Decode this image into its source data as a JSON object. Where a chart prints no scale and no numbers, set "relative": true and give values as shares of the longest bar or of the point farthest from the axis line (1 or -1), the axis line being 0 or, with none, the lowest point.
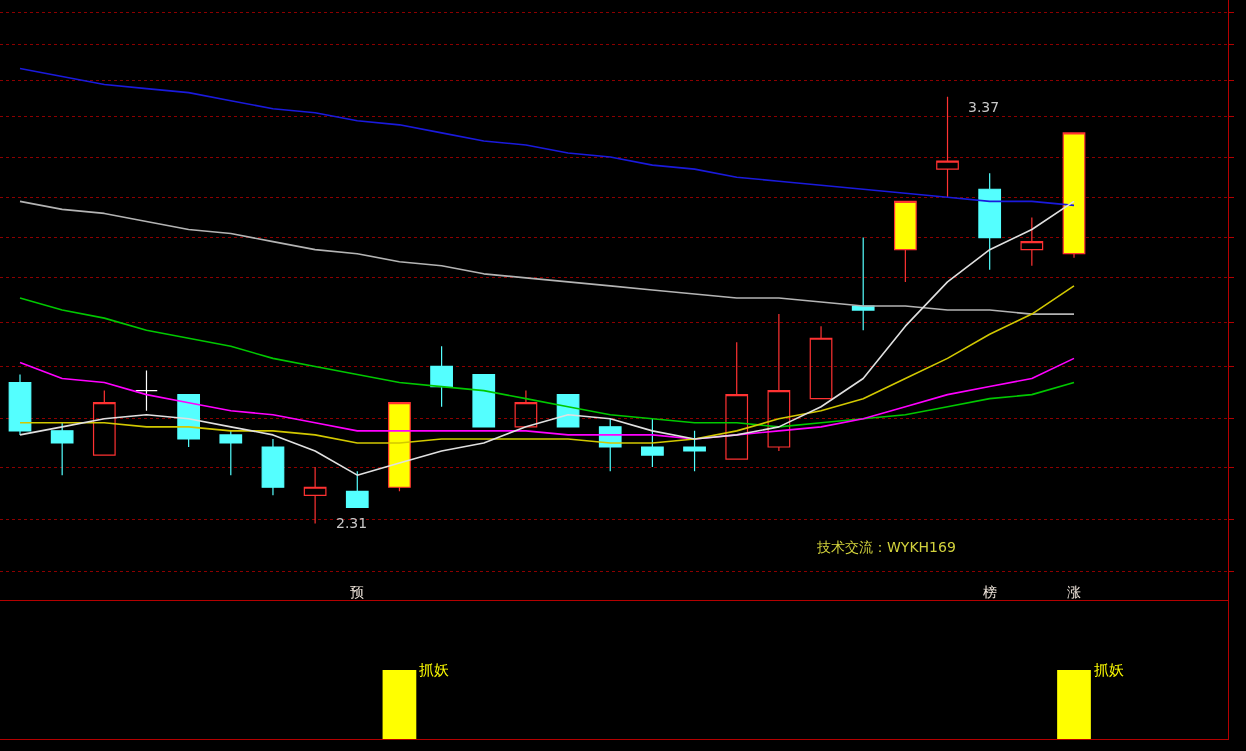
{
  "chart_data": [
    {
      "type": "candlestick",
      "categories": [
        null,
        null,
        null,
        null,
        null,
        null,
        null,
        null,
        "预",
        null,
        null,
        null,
        null,
        null,
        null,
        null,
        null,
        null,
        null,
        null,
        null,
        null,
        null,
        "榜",
        null,
        "涨"
      ],
      "ohlc": [
        [
          2.66,
          2.68,
          2.53,
          2.54
        ],
        [
          2.54,
          2.56,
          2.43,
          2.51
        ],
        [
          2.48,
          2.64,
          2.48,
          2.61
        ],
        [
          2.64,
          2.69,
          2.59,
          2.64
        ],
        [
          2.63,
          2.63,
          2.5,
          2.52
        ],
        [
          2.53,
          2.54,
          2.43,
          2.51
        ],
        [
          2.5,
          2.52,
          2.38,
          2.4
        ],
        [
          2.38,
          2.45,
          2.31,
          2.4
        ],
        [
          2.39,
          2.44,
          2.35,
          2.35
        ],
        [
          2.4,
          2.61,
          2.39,
          2.61
        ],
        [
          2.7,
          2.75,
          2.6,
          2.65
        ],
        [
          2.68,
          2.68,
          2.55,
          2.55
        ],
        [
          2.55,
          2.64,
          2.55,
          2.61
        ],
        [
          2.63,
          2.63,
          2.55,
          2.55
        ],
        [
          2.55,
          2.57,
          2.44,
          2.5
        ],
        [
          2.5,
          2.57,
          2.45,
          2.48
        ],
        [
          2.5,
          2.54,
          2.44,
          2.49
        ],
        [
          2.47,
          2.76,
          2.47,
          2.63
        ],
        [
          2.5,
          2.83,
          2.49,
          2.64
        ],
        [
          2.62,
          2.8,
          2.62,
          2.77
        ],
        [
          2.85,
          3.02,
          2.79,
          2.84
        ],
        [
          2.99,
          3.11,
          2.91,
          3.11
        ],
        [
          3.19,
          3.37,
          3.12,
          3.21
        ],
        [
          3.14,
          3.18,
          2.94,
          3.02
        ],
        [
          2.99,
          3.07,
          2.95,
          3.01
        ],
        [
          2.98,
          3.28,
          2.97,
          3.28
        ]
      ],
      "color": "#ff3232",
      "colors": [
        "#54ffff",
        "#54ffff",
        null,
        "#ffffff",
        "#54ffff",
        "#54ffff",
        "#54ffff",
        null,
        "#54ffff",
        "#ffff00",
        "#54ffff",
        "#54ffff",
        null,
        "#54ffff",
        "#54ffff",
        "#54ffff",
        "#54ffff",
        null,
        null,
        null,
        "#54ffff",
        "#ffff00",
        null,
        "#54ffff",
        null,
        "#ffff00"
      ],
      "series": [
        {
          "type": "line",
          "color": "#1a1adc",
          "values": [
            3.44,
            3.42,
            3.4,
            3.39,
            3.38,
            3.36,
            3.34,
            3.33,
            3.31,
            3.3,
            3.28,
            3.26,
            3.25,
            3.23,
            3.22,
            3.2,
            3.19,
            3.17,
            3.16,
            3.15,
            3.14,
            3.13,
            3.12,
            3.11,
            3.11,
            3.1
          ]
        },
        {
          "type": "line",
          "color": "#b4b4b4",
          "values": [
            3.11,
            3.09,
            3.08,
            3.06,
            3.04,
            3.03,
            3.01,
            2.99,
            2.98,
            2.96,
            2.95,
            2.93,
            2.92,
            2.91,
            2.9,
            2.89,
            2.88,
            2.87,
            2.87,
            2.86,
            2.85,
            2.85,
            2.84,
            2.84,
            2.83,
            2.83
          ]
        },
        {
          "type": "line",
          "color": "#00c800",
          "values": [
            2.87,
            2.84,
            2.82,
            2.79,
            2.77,
            2.75,
            2.72,
            2.7,
            2.68,
            2.66,
            2.65,
            2.64,
            2.62,
            2.6,
            2.58,
            2.57,
            2.56,
            2.56,
            2.55,
            2.56,
            2.57,
            2.58,
            2.6,
            2.62,
            2.63,
            2.66
          ]
        },
        {
          "type": "line",
          "color": "#ff00ff",
          "values": [
            2.71,
            2.67,
            2.66,
            2.63,
            2.61,
            2.59,
            2.58,
            2.56,
            2.54,
            2.54,
            2.54,
            2.54,
            2.54,
            2.53,
            2.53,
            2.53,
            2.52,
            2.53,
            2.54,
            2.55,
            2.57,
            2.6,
            2.63,
            2.65,
            2.67,
            2.72
          ]
        },
        {
          "type": "line",
          "color": "#d2c800",
          "values": [
            2.56,
            2.56,
            2.56,
            2.55,
            2.55,
            2.54,
            2.54,
            2.53,
            2.51,
            2.51,
            2.52,
            2.52,
            2.52,
            2.52,
            2.51,
            2.51,
            2.52,
            2.54,
            2.57,
            2.59,
            2.62,
            2.67,
            2.72,
            2.78,
            2.83,
            2.9
          ]
        },
        {
          "type": "line",
          "color": "#e0e0e0",
          "values": [
            2.53,
            2.55,
            2.57,
            2.58,
            2.57,
            2.55,
            2.53,
            2.49,
            2.43,
            2.46,
            2.49,
            2.51,
            2.55,
            2.58,
            2.57,
            2.54,
            2.52,
            2.53,
            2.55,
            2.6,
            2.67,
            2.8,
            2.91,
            2.99,
            3.04,
            3.11
          ]
        }
      ],
      "annotations": [
        "3.37",
        "2.31",
        "技术交流：WYKH169"
      ],
      "ylim": [
        2.12,
        3.61
      ],
      "yticks": [
        {
          "value": 2.19,
          "label": null
        },
        {
          "value": 2.32,
          "label": null
        },
        {
          "value": 2.45,
          "label": null
        },
        {
          "value": 2.57,
          "label": null
        },
        {
          "value": 2.7,
          "label": null
        },
        {
          "value": 2.81,
          "label": null
        },
        {
          "value": 2.92,
          "label": null
        },
        {
          "value": 3.02,
          "label": null
        },
        {
          "value": 3.12,
          "label": null
        },
        {
          "value": 3.22,
          "label": null
        },
        {
          "value": 3.32,
          "label": null
        },
        {
          "value": 3.41,
          "label": null
        },
        {
          "value": 3.5,
          "label": null
        },
        {
          "value": 3.58,
          "label": null
        }
      ],
      "grid": "y",
      "tick_labels": "x"
    },
    {
      "type": "bar",
      "relative": true,
      "categories": [
        null,
        null,
        null,
        null,
        null,
        null,
        null,
        null,
        null,
        null,
        null,
        null,
        null,
        null,
        null,
        null,
        null,
        null,
        null,
        null,
        null,
        null,
        null,
        null,
        null,
        null
      ],
      "values": [
        null,
        null,
        null,
        null,
        null,
        null,
        null,
        null,
        null,
        1,
        null,
        null,
        null,
        null,
        null,
        null,
        null,
        null,
        null,
        null,
        null,
        null,
        null,
        null,
        null,
        1
      ],
      "annotations": [
        "抓妖",
        "抓妖"
      ],
      "color": "#ffff00",
      "tick_labels": false
    }
  ]
}
